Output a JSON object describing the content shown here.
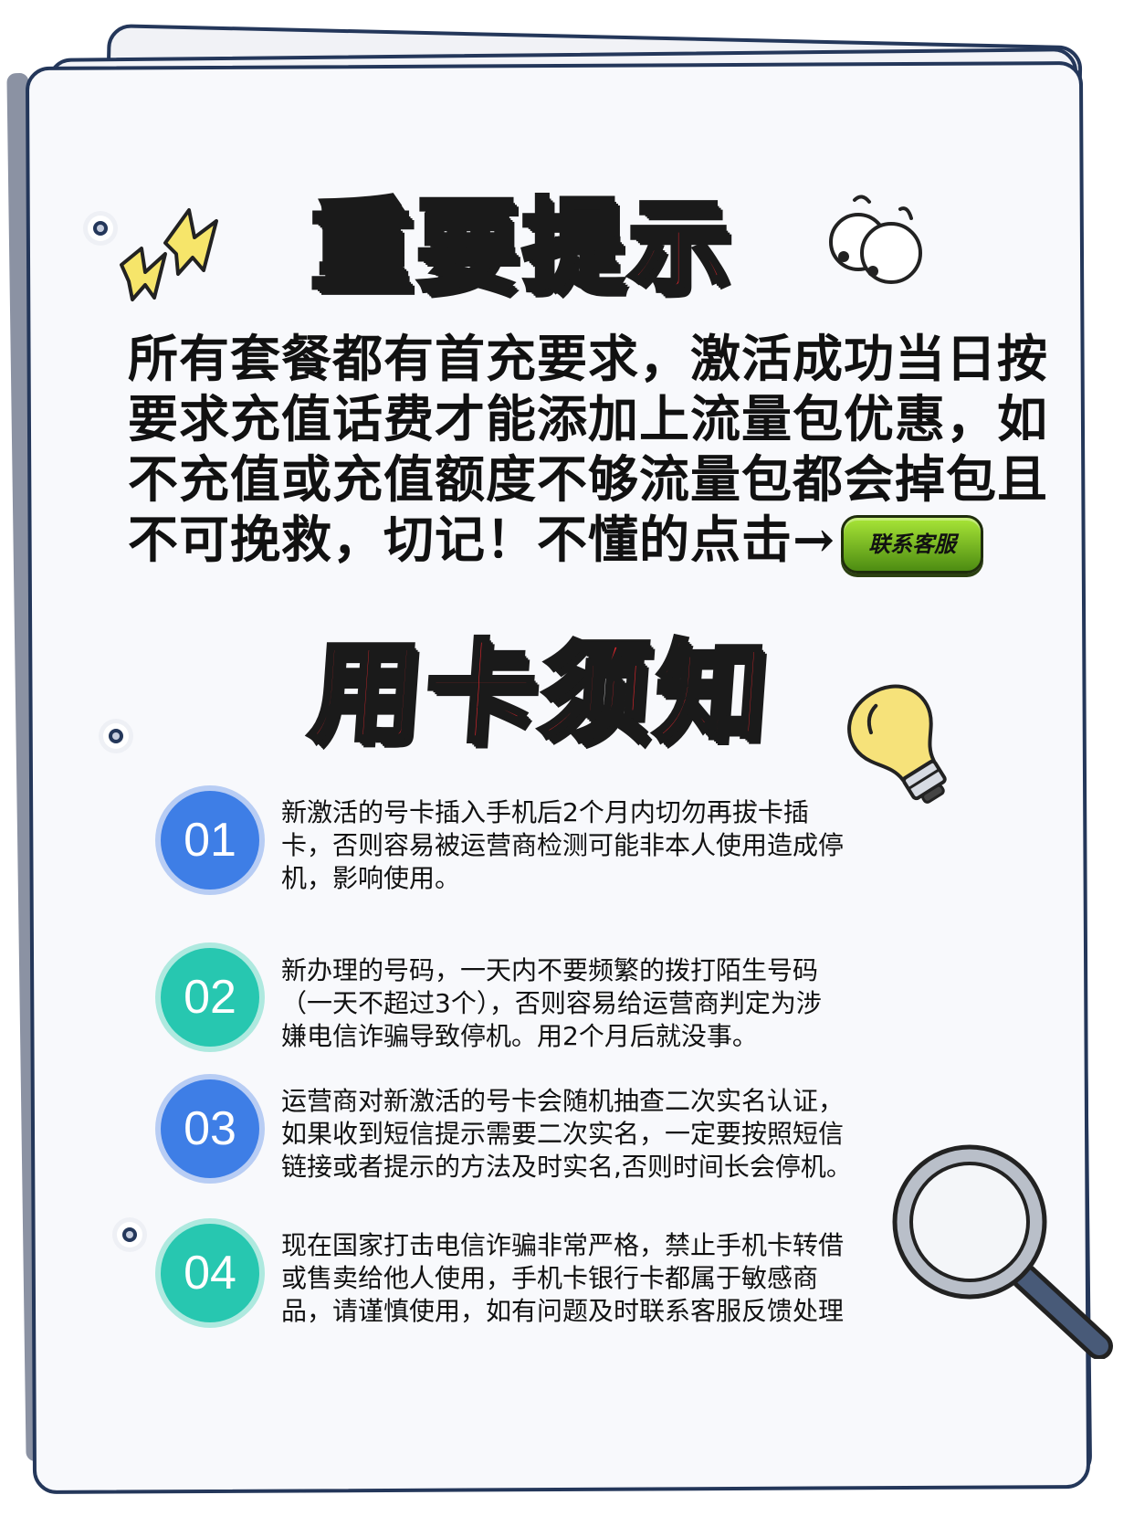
{
  "notice": {
    "title": "重要提示",
    "lines": [
      "所有套餐都有首充要求，激活成功当日按",
      "要求充值话费才能添加上流量包优惠，如",
      "不充值或充值额度不够流量包都会掉包且",
      "不可挽救，切记！不懂的点击→"
    ],
    "contact_button": "联系客服"
  },
  "guide": {
    "title": "用卡须知",
    "items": [
      {
        "number": "01",
        "lines": [
          "新激活的号卡插入手机后2个月内切勿再拔卡插",
          "卡，否则容易被运营商检测可能非本人使用造成停",
          "机，影响使用。"
        ]
      },
      {
        "number": "02",
        "lines": [
          "新办理的号码，一天内不要频繁的拨打陌生号码",
          "（一天不超过3个），否则容易给运营商判定为涉",
          "嫌电信诈骗导致停机。用2个月后就没事。"
        ]
      },
      {
        "number": "03",
        "lines": [
          "运营商对新激活的号卡会随机抽查二次实名认证，",
          "如果收到短信提示需要二次实名，一定要按照短信",
          "链接或者提示的方法及时实名,否则时间长会停机。"
        ]
      },
      {
        "number": "04",
        "lines": [
          "现在国家打击电信诈骗非常严格，禁止手机卡转借",
          "或售卖给他人使用，手机卡银行卡都属于敏感商",
          "品，请谨慎使用，如有问题及时联系客服反馈处理"
        ]
      }
    ]
  },
  "colors": {
    "title_red": "#e3262d",
    "badge_blue": "#3e7ee6",
    "badge_teal": "#27c7b0",
    "button_green": "#6fb222",
    "border_navy": "#24375a"
  },
  "icons": [
    "lightning-icon",
    "eyes-icon",
    "lightbulb-icon",
    "magnifier-icon"
  ]
}
